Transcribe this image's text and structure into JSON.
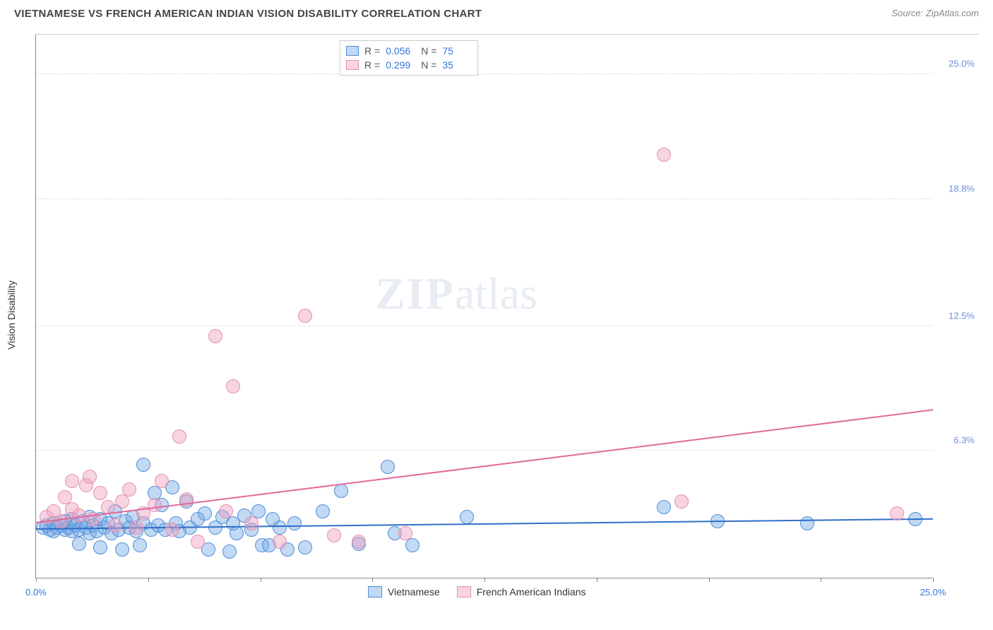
{
  "header": {
    "title": "VIETNAMESE VS FRENCH AMERICAN INDIAN VISION DISABILITY CORRELATION CHART",
    "source_prefix": "Source: ",
    "source": "ZipAtlas.com"
  },
  "watermark": {
    "zip": "ZIP",
    "atlas": "atlas"
  },
  "chart": {
    "type": "scatter",
    "y_axis_title": "Vision Disability",
    "background_color": "#ffffff",
    "grid_color": "#dddddd",
    "xlim": [
      0,
      25
    ],
    "ylim": [
      0,
      27
    ],
    "x_ticks": [
      0,
      3.125,
      6.25,
      9.375,
      12.5,
      15.625,
      18.75,
      21.875,
      25
    ],
    "x_tick_labels": {
      "0": "0.0%",
      "25": "25.0%"
    },
    "x_label_color": "#3377dd",
    "y_ticks": [
      {
        "v": 6.3,
        "label": "6.3%"
      },
      {
        "v": 12.5,
        "label": "12.5%"
      },
      {
        "v": 18.8,
        "label": "18.8%"
      },
      {
        "v": 25.0,
        "label": "25.0%"
      }
    ],
    "y_label_color": "#6a8fd8",
    "point_radius": 10,
    "series": [
      {
        "name": "Vietnamese",
        "fill": "rgba(120,170,230,0.45)",
        "stroke": "#4f8fd6",
        "trend_color": "#2f6fc6",
        "r": "0.056",
        "n": "75",
        "trendline": {
          "x1": 0,
          "y1": 2.4,
          "x2": 25,
          "y2": 2.9
        },
        "points": [
          [
            0.2,
            2.5
          ],
          [
            0.3,
            2.6
          ],
          [
            0.4,
            2.4
          ],
          [
            0.5,
            2.7
          ],
          [
            0.5,
            2.3
          ],
          [
            0.6,
            2.5
          ],
          [
            0.7,
            2.6
          ],
          [
            0.8,
            2.4
          ],
          [
            0.8,
            2.8
          ],
          [
            0.9,
            2.5
          ],
          [
            1.0,
            2.3
          ],
          [
            1.0,
            2.9
          ],
          [
            1.1,
            2.6
          ],
          [
            1.2,
            2.4
          ],
          [
            1.2,
            1.7
          ],
          [
            1.3,
            2.8
          ],
          [
            1.4,
            2.5
          ],
          [
            1.5,
            2.2
          ],
          [
            1.5,
            3.0
          ],
          [
            1.6,
            2.6
          ],
          [
            1.7,
            2.3
          ],
          [
            1.8,
            2.9
          ],
          [
            1.8,
            1.5
          ],
          [
            1.9,
            2.5
          ],
          [
            2.0,
            2.7
          ],
          [
            2.1,
            2.2
          ],
          [
            2.2,
            3.3
          ],
          [
            2.3,
            2.4
          ],
          [
            2.4,
            1.4
          ],
          [
            2.5,
            2.8
          ],
          [
            2.6,
            2.5
          ],
          [
            2.7,
            3.0
          ],
          [
            2.8,
            2.3
          ],
          [
            2.9,
            1.6
          ],
          [
            3.0,
            2.7
          ],
          [
            3.0,
            5.6
          ],
          [
            3.2,
            2.4
          ],
          [
            3.3,
            4.2
          ],
          [
            3.4,
            2.6
          ],
          [
            3.5,
            3.6
          ],
          [
            3.6,
            2.4
          ],
          [
            3.8,
            4.5
          ],
          [
            3.9,
            2.7
          ],
          [
            4.0,
            2.3
          ],
          [
            4.2,
            3.8
          ],
          [
            4.3,
            2.5
          ],
          [
            4.5,
            2.9
          ],
          [
            4.7,
            3.2
          ],
          [
            4.8,
            1.4
          ],
          [
            5.0,
            2.5
          ],
          [
            5.2,
            3.0
          ],
          [
            5.4,
            1.3
          ],
          [
            5.5,
            2.7
          ],
          [
            5.6,
            2.2
          ],
          [
            5.8,
            3.1
          ],
          [
            6.0,
            2.4
          ],
          [
            6.2,
            3.3
          ],
          [
            6.3,
            1.6
          ],
          [
            6.5,
            1.6
          ],
          [
            6.6,
            2.9
          ],
          [
            6.8,
            2.5
          ],
          [
            7.0,
            1.4
          ],
          [
            7.2,
            2.7
          ],
          [
            7.5,
            1.5
          ],
          [
            8.0,
            3.3
          ],
          [
            8.5,
            4.3
          ],
          [
            9.0,
            1.7
          ],
          [
            9.8,
            5.5
          ],
          [
            10.0,
            2.2
          ],
          [
            10.5,
            1.6
          ],
          [
            12.0,
            3.0
          ],
          [
            17.5,
            3.5
          ],
          [
            19.0,
            2.8
          ],
          [
            21.5,
            2.7
          ],
          [
            24.5,
            2.9
          ]
        ]
      },
      {
        "name": "French American Indians",
        "fill": "rgba(240,160,190,0.45)",
        "stroke": "#e48fb0",
        "trend_color": "#e06a9a",
        "r": "0.299",
        "n": "35",
        "trendline": {
          "x1": 0,
          "y1": 2.7,
          "x2": 25,
          "y2": 8.3
        },
        "points": [
          [
            0.3,
            3.0
          ],
          [
            0.5,
            3.3
          ],
          [
            0.7,
            2.8
          ],
          [
            0.8,
            4.0
          ],
          [
            1.0,
            3.4
          ],
          [
            1.0,
            4.8
          ],
          [
            1.2,
            3.1
          ],
          [
            1.4,
            4.6
          ],
          [
            1.5,
            5.0
          ],
          [
            1.6,
            2.9
          ],
          [
            1.8,
            4.2
          ],
          [
            2.0,
            3.5
          ],
          [
            2.2,
            2.6
          ],
          [
            2.4,
            3.8
          ],
          [
            2.6,
            4.4
          ],
          [
            2.8,
            2.5
          ],
          [
            3.0,
            3.2
          ],
          [
            3.3,
            3.6
          ],
          [
            3.5,
            4.8
          ],
          [
            3.8,
            2.4
          ],
          [
            4.0,
            7.0
          ],
          [
            4.2,
            3.9
          ],
          [
            4.5,
            1.8
          ],
          [
            5.0,
            12.0
          ],
          [
            5.3,
            3.3
          ],
          [
            5.5,
            9.5
          ],
          [
            6.0,
            2.7
          ],
          [
            6.8,
            1.8
          ],
          [
            7.5,
            13.0
          ],
          [
            8.3,
            2.1
          ],
          [
            9.0,
            1.8
          ],
          [
            10.3,
            2.2
          ],
          [
            17.5,
            21.0
          ],
          [
            18.0,
            3.8
          ],
          [
            24.0,
            3.2
          ]
        ]
      }
    ],
    "bottom_legend": [
      {
        "label": "Vietnamese",
        "series": 0
      },
      {
        "label": "French American Indians",
        "series": 1
      }
    ]
  }
}
